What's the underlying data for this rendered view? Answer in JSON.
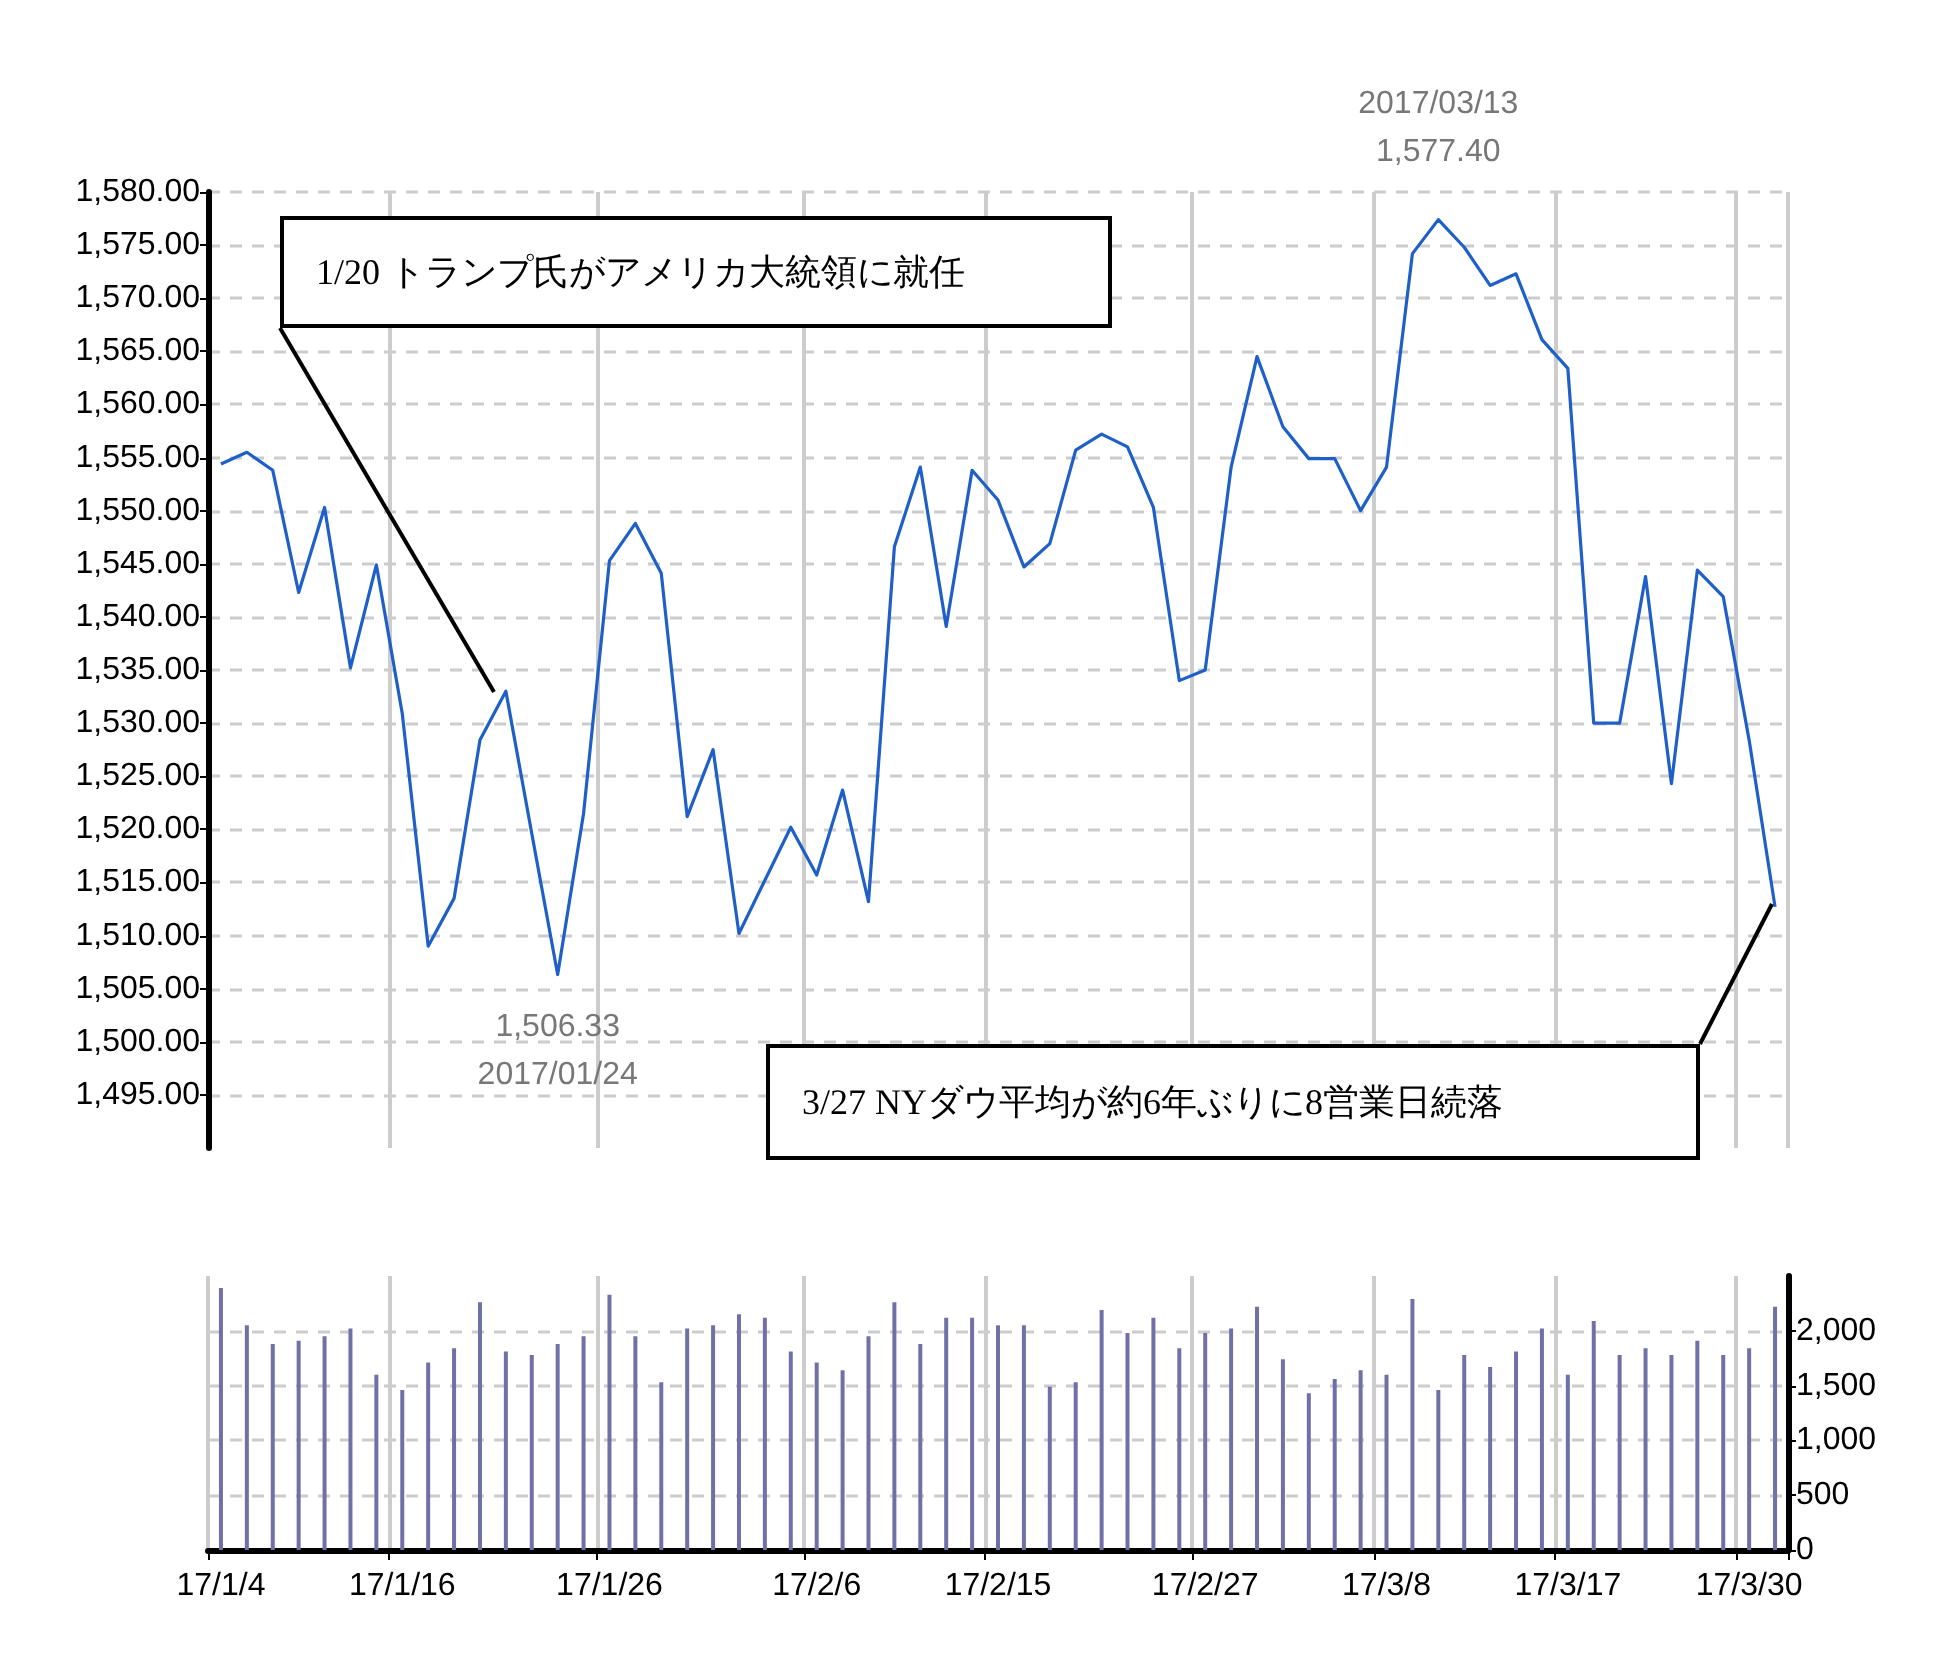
{
  "chart_data": [
    {
      "type": "line",
      "categories": [
        null,
        null,
        null,
        null,
        null,
        null,
        null,
        null,
        null,
        null,
        null,
        null,
        null,
        null,
        null,
        null,
        null,
        null,
        null,
        null,
        null,
        null,
        null,
        null,
        null,
        null,
        null,
        null,
        null,
        null,
        null,
        null,
        null,
        null,
        null,
        null,
        null,
        null,
        null,
        null,
        null,
        null,
        null,
        null,
        null,
        null,
        null,
        null,
        null,
        null,
        null,
        null,
        null,
        null,
        null,
        null,
        null,
        null,
        null,
        null,
        null
      ],
      "values": [
        1554.4,
        1555.5,
        1553.8,
        1542.3,
        1550.3,
        1535.2,
        1544.9,
        1530.9,
        1509.0,
        1513.5,
        1528.4,
        1533.0,
        1519.6,
        1506.33,
        1521.5,
        1545.3,
        1548.8,
        1544.1,
        1521.2,
        1527.5,
        1510.2,
        1515.2,
        1520.2,
        1515.7,
        1523.7,
        1513.2,
        1546.6,
        1554.1,
        1539.1,
        1553.8,
        1551.0,
        1544.7,
        1546.9,
        1555.7,
        1557.2,
        1556.0,
        1550.3,
        1534.0,
        1535.0,
        1554.1,
        1564.5,
        1557.9,
        1554.9,
        1554.9,
        1550.0,
        1554.1,
        1574.2,
        1577.4,
        1574.8,
        1571.2,
        1572.3,
        1566.1,
        1563.4,
        1530.0,
        1530.0,
        1543.8,
        1524.3,
        1544.4,
        1541.9,
        1528.4,
        1512.7
      ],
      "color": "#1f5fc8",
      "ylim": [
        1490,
        1580
      ],
      "yticks": [
        {
          "value": 1495,
          "label": "1,495.00"
        },
        {
          "value": 1500,
          "label": "1,500.00"
        },
        {
          "value": 1505,
          "label": "1,505.00"
        },
        {
          "value": 1510,
          "label": "1,510.00"
        },
        {
          "value": 1515,
          "label": "1,515.00"
        },
        {
          "value": 1520,
          "label": "1,520.00"
        },
        {
          "value": 1525,
          "label": "1,525.00"
        },
        {
          "value": 1530,
          "label": "1,530.00"
        },
        {
          "value": 1535,
          "label": "1,535.00"
        },
        {
          "value": 1540,
          "label": "1,540.00"
        },
        {
          "value": 1545,
          "label": "1,545.00"
        },
        {
          "value": 1550,
          "label": "1,550.00"
        },
        {
          "value": 1555,
          "label": "1,555.00"
        },
        {
          "value": 1560,
          "label": "1,560.00"
        },
        {
          "value": 1565,
          "label": "1,565.00"
        },
        {
          "value": 1570,
          "label": "1,570.00"
        },
        {
          "value": 1575,
          "label": "1,575.00"
        },
        {
          "value": 1580,
          "label": "1,580.00"
        }
      ],
      "grid": true,
      "tick_labels": "y",
      "annotations": [
        {
          "text": "2017/03/13\n1,577.40",
          "y": 1577.4
        },
        {
          "text": "1,506.33\n2017/01/24",
          "y": 1506.33
        },
        "1/20 トランプ氏がアメリカ大統領に就任",
        "3/27 NYダウ平均が約6年ぶりに8営業日続落"
      ]
    },
    {
      "type": "bar",
      "categories": [
        "17/1/4",
        null,
        null,
        null,
        null,
        null,
        null,
        "17/1/16",
        null,
        null,
        null,
        null,
        null,
        null,
        null,
        "17/1/26",
        null,
        null,
        null,
        null,
        null,
        null,
        null,
        "17/2/6",
        null,
        null,
        null,
        null,
        null,
        null,
        "17/2/15",
        null,
        null,
        null,
        null,
        null,
        null,
        null,
        "17/2/27",
        null,
        null,
        null,
        null,
        null,
        null,
        "17/3/8",
        null,
        null,
        null,
        null,
        null,
        null,
        "17/3/17",
        null,
        null,
        null,
        null,
        null,
        null,
        "17/3/30",
        null
      ],
      "values": [
        2390,
        2050,
        1880,
        1910,
        1950,
        2020,
        1600,
        1460,
        1710,
        1840,
        2260,
        1810,
        1780,
        1880,
        1950,
        2330,
        1950,
        1530,
        2020,
        2050,
        2150,
        2120,
        1810,
        1710,
        1640,
        1950,
        2260,
        1880,
        2120,
        2120,
        2050,
        2050,
        1490,
        1530,
        2190,
        1980,
        2120,
        1840,
        1980,
        2020,
        2220,
        1740,
        1430,
        1560,
        1640,
        1600,
        2290,
        1460,
        1780,
        1670,
        1810,
        2020,
        1600,
        2090,
        1780,
        1840,
        1780,
        1910,
        1780,
        1840,
        2220
      ],
      "color": "#7070a8",
      "ylim": [
        0,
        2500
      ],
      "yticks": [
        0,
        500,
        {
          "value": 1000,
          "label": "1,000"
        },
        {
          "value": 1500,
          "label": "1,500"
        },
        {
          "value": 2000,
          "label": "2,000"
        }
      ],
      "grid": true
    }
  ]
}
